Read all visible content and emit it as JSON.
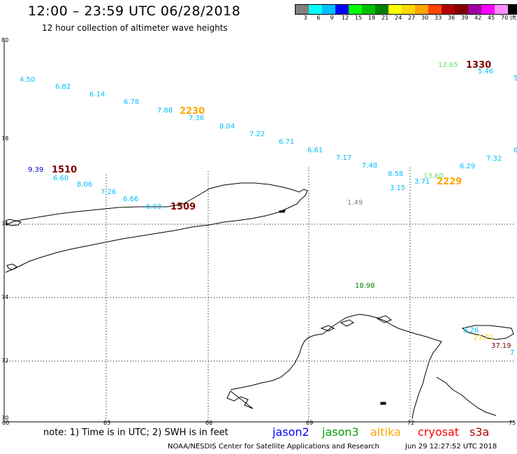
{
  "header": {
    "title": "12:00 – 23:59 UTC 06/28/2018",
    "subtitle": "12 hour collection of altimeter wave heights"
  },
  "colorbar": {
    "unit": "(ft)",
    "items": [
      {
        "label": "3",
        "color": "#808080"
      },
      {
        "label": "6",
        "color": "#00ffff"
      },
      {
        "label": "9",
        "color": "#00bfff"
      },
      {
        "label": "12",
        "color": "#0000ff"
      },
      {
        "label": "15",
        "color": "#00ff00"
      },
      {
        "label": "18",
        "color": "#00c000"
      },
      {
        "label": "21",
        "color": "#008000"
      },
      {
        "label": "24",
        "color": "#ffff00"
      },
      {
        "label": "27",
        "color": "#ffd700"
      },
      {
        "label": "30",
        "color": "#ffa500"
      },
      {
        "label": "33",
        "color": "#ff4500"
      },
      {
        "label": "36",
        "color": "#b00000"
      },
      {
        "label": "39",
        "color": "#800000"
      },
      {
        "label": "42",
        "color": "#a000a0"
      },
      {
        "label": "45",
        "color": "#ff00ff"
      },
      {
        "label": "70",
        "color": "#ff90ff"
      },
      {
        "label": "",
        "color": "#000000"
      }
    ]
  },
  "axes": {
    "lat_labels": [
      "80",
      "78",
      "76",
      "74",
      "72",
      "70"
    ],
    "lon_labels": [
      "60",
      "63",
      "66",
      "69",
      "72",
      "75"
    ]
  },
  "wave_heights": [
    {
      "text": "4.50",
      "color": "#00bfff"
    },
    {
      "text": "6.82",
      "color": "#00bfff"
    },
    {
      "text": "6.14",
      "color": "#00bfff"
    },
    {
      "text": "6.78",
      "color": "#00bfff"
    },
    {
      "text": "7.88",
      "color": "#00bfff"
    },
    {
      "text": "7.36",
      "color": "#00bfff"
    },
    {
      "text": "8.04",
      "color": "#00bfff"
    },
    {
      "text": "7.22",
      "color": "#00bfff"
    },
    {
      "text": "6.71",
      "color": "#00bfff"
    },
    {
      "text": "6.61",
      "color": "#00bfff"
    },
    {
      "text": "7.17",
      "color": "#00bfff"
    },
    {
      "text": "7.48",
      "color": "#00bfff"
    },
    {
      "text": "8.58",
      "color": "#00bfff"
    },
    {
      "text": "3.15",
      "color": "#00bfff"
    },
    {
      "text": "3.71",
      "color": "#00bfff"
    },
    {
      "text": "13.60",
      "color": "#66dd66"
    },
    {
      "text": "6.29",
      "color": "#00bfff"
    },
    {
      "text": "7.32",
      "color": "#00bfff"
    },
    {
      "text": "6",
      "color": "#00bfff"
    },
    {
      "text": "12.65",
      "color": "#66dd66"
    },
    {
      "text": "5.46",
      "color": "#00bfff"
    },
    {
      "text": "5",
      "color": "#00bfff"
    },
    {
      "text": "9.39",
      "color": "#0000cc"
    },
    {
      "text": "6.60",
      "color": "#00bfff"
    },
    {
      "text": "8.06",
      "color": "#00bfff"
    },
    {
      "text": "7.26",
      "color": "#00bfff"
    },
    {
      "text": "6.66",
      "color": "#00bfff"
    },
    {
      "text": "6.03",
      "color": "#00bfff"
    },
    {
      "text": "1.49",
      "color": "#808080"
    },
    {
      "text": "18.98",
      "color": "#008000"
    },
    {
      "text": "8.26",
      "color": "#00bfff"
    },
    {
      "text": "21.21",
      "color": "#ffd700"
    },
    {
      "text": "37.19",
      "color": "#800000"
    },
    {
      "text": "7",
      "color": "#00bfff"
    }
  ],
  "pass_times": [
    {
      "text": "1330",
      "color": "#800000"
    },
    {
      "text": "2230",
      "color": "#ffa500"
    },
    {
      "text": "1510",
      "color": "#800000"
    },
    {
      "text": "1509",
      "color": "#800000"
    },
    {
      "text": "2229",
      "color": "#ffa500"
    }
  ],
  "footer": {
    "note": "note: 1) Time is in UTC; 2) SWH is in feet",
    "satellites": [
      {
        "name": "jason2",
        "color": "#0000ff"
      },
      {
        "name": "jason3",
        "color": "#00a000"
      },
      {
        "name": "altika",
        "color": "#ffa500"
      },
      {
        "name": "cryosat",
        "color": "#ff0000"
      },
      {
        "name": "s3a",
        "color": "#b00000"
      }
    ],
    "credit": "NOAA/NESDIS Center for Satellite Applications and Research",
    "timestamp": "Jun 29 12:27:52 UTC 2018"
  }
}
